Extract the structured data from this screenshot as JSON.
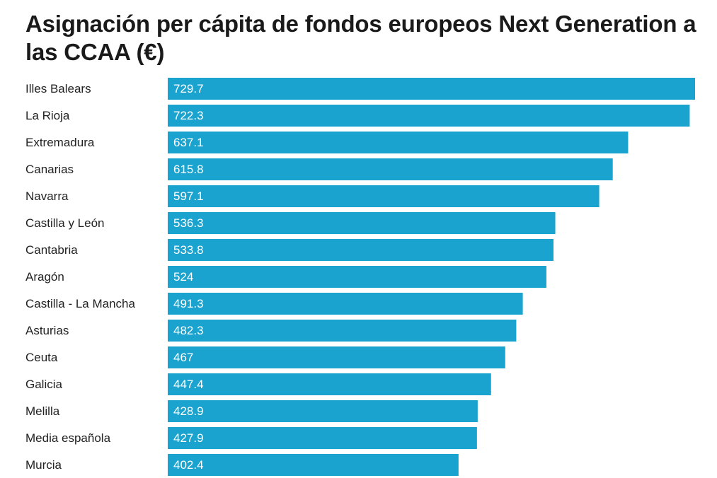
{
  "colors": {
    "bar": "#1ba3cf",
    "text": "#222222",
    "background": "#ffffff"
  },
  "chart_data": {
    "type": "bar",
    "orientation": "horizontal",
    "title": "Asignación per cápita de fondos europeos Next Generation a las CCAA (€)",
    "xlabel": "",
    "ylabel": "",
    "grid": false,
    "legend": "none",
    "xlim": [
      0,
      729.7
    ],
    "categories": [
      "Illes Balears",
      "La Rioja",
      "Extremadura",
      "Canarias",
      "Navarra",
      "Castilla y León",
      "Cantabria",
      "Aragón",
      "Castilla - La Mancha",
      "Asturias",
      "Ceuta",
      "Galicia",
      "Melilla",
      "Media española",
      "Murcia"
    ],
    "values": [
      729.7,
      722.3,
      637.1,
      615.8,
      597.1,
      536.3,
      533.8,
      524,
      491.3,
      482.3,
      467,
      447.4,
      428.9,
      427.9,
      402.4
    ],
    "value_labels": [
      "729.7",
      "722.3",
      "637.1",
      "615.8",
      "597.1",
      "536.3",
      "533.8",
      "524",
      "491.3",
      "482.3",
      "467",
      "447.4",
      "428.9",
      "427.9",
      "402.4"
    ]
  }
}
